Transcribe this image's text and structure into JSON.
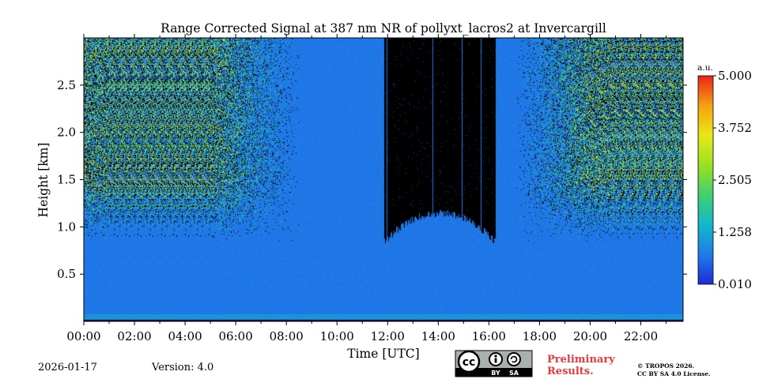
{
  "chart_data": {
    "type": "heatmap",
    "title": "Range Corrected Signal at 387 nm NR of pollyxt_lacros2 at Invercargill",
    "xlabel": "Time [UTC]",
    "ylabel": "Height [km]",
    "xlim_hours": [
      0,
      23.67
    ],
    "ylim_km": [
      0,
      3.0
    ],
    "x_ticks": [
      {
        "hour": 0,
        "label": "00:00"
      },
      {
        "hour": 2,
        "label": "02:00"
      },
      {
        "hour": 4,
        "label": "04:00"
      },
      {
        "hour": 6,
        "label": "06:00"
      },
      {
        "hour": 8,
        "label": "08:00"
      },
      {
        "hour": 10,
        "label": "10:00"
      },
      {
        "hour": 12,
        "label": "12:00"
      },
      {
        "hour": 14,
        "label": "14:00"
      },
      {
        "hour": 16,
        "label": "16:00"
      },
      {
        "hour": 18,
        "label": "18:00"
      },
      {
        "hour": 20,
        "label": "20:00"
      },
      {
        "hour": 22,
        "label": "22:00"
      }
    ],
    "y_ticks": [
      {
        "km": 0.5,
        "label": "0.5"
      },
      {
        "km": 1.0,
        "label": "1.0"
      },
      {
        "km": 1.5,
        "label": "1.5"
      },
      {
        "km": 2.0,
        "label": "2.0"
      },
      {
        "km": 2.5,
        "label": "2.5"
      }
    ],
    "colorbar": {
      "unit": "a.u.",
      "min": 0.01,
      "max": 5.0,
      "tick_labels": [
        "5.000",
        "3.752",
        "2.505",
        "1.258",
        "0.010"
      ],
      "tick_values": [
        5.0,
        3.752,
        2.505,
        1.258,
        0.01
      ],
      "colors": [
        "#1e2bd6",
        "#1f7ce8",
        "#13b8c9",
        "#3fd070",
        "#9be01f",
        "#e8e81a",
        "#f5a20f",
        "#e8241a"
      ]
    },
    "no_data_start_hour": 11.85,
    "no_data_end_hour": 16.25,
    "no_data_bottom_km_start": 0.85,
    "no_data_bottom_km_mid": 1.15,
    "noisy_layer_bottom_km": 1.0
  },
  "footer": {
    "date": "2026-01-17",
    "version": "Version: 4.0",
    "preliminary_line1": "Preliminary",
    "preliminary_line2": "Results.",
    "copyright": "© TROPOS 2026.",
    "license": "CC BY SA 4.0 License.",
    "cc_badge": {
      "cc": "cc",
      "by": "BY",
      "sa": "SA"
    }
  }
}
